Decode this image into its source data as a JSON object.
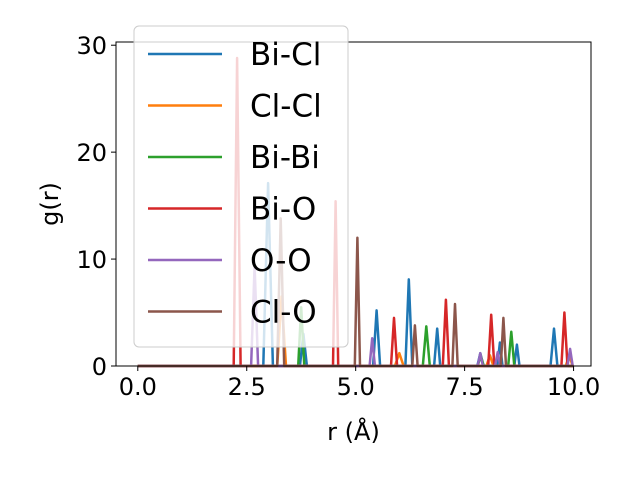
{
  "chart_data": {
    "type": "line",
    "xlabel": "r (Å)",
    "ylabel": "g(r)",
    "xlim": [
      -0.5,
      10.4
    ],
    "ylim": [
      0,
      30.3
    ],
    "xticks": [
      0.0,
      2.5,
      5.0,
      7.5,
      10.0
    ],
    "xtick_labels": [
      "0.0",
      "2.5",
      "5.0",
      "7.5",
      "10.0"
    ],
    "yticks": [
      0,
      10,
      20,
      30
    ],
    "ytick_labels": [
      "0",
      "10",
      "20",
      "30"
    ],
    "grid": false,
    "legend_position": "upper-left",
    "series": [
      {
        "name": "Bi-Cl",
        "color": "#1f77b4",
        "x": [
          0.0,
          2.88,
          2.99,
          3.1,
          3.72,
          3.8,
          3.88,
          5.4,
          5.48,
          5.56,
          6.14,
          6.22,
          6.3,
          6.8,
          6.87,
          6.94,
          7.79,
          7.86,
          7.93,
          8.25,
          8.31,
          8.37,
          8.64,
          8.7,
          8.76,
          9.47,
          9.55,
          9.63,
          10.0
        ],
        "y": [
          0,
          0,
          17.1,
          0,
          0,
          3.0,
          0,
          0,
          5.2,
          0,
          0,
          8.1,
          0,
          0,
          3.5,
          0,
          0,
          1.2,
          0,
          0,
          2.2,
          0,
          0,
          2.0,
          0,
          0,
          3.5,
          0,
          0
        ]
      },
      {
        "name": "Cl-Cl",
        "color": "#ff7f0e",
        "x": [
          0.0,
          3.2,
          3.3,
          3.4,
          5.9,
          6.0,
          6.1,
          8.0,
          8.08,
          8.16,
          9.82,
          9.9,
          9.98,
          10.0
        ],
        "y": [
          0,
          0,
          6.5,
          0,
          0,
          1.2,
          0,
          0,
          1.0,
          0,
          0,
          1.0,
          0,
          0
        ]
      },
      {
        "name": "Bi-Bi",
        "color": "#2ca02c",
        "x": [
          0.0,
          3.68,
          3.75,
          3.82,
          6.54,
          6.62,
          6.7,
          7.8,
          7.87,
          7.94,
          8.5,
          8.57,
          8.64,
          10.0
        ],
        "y": [
          0,
          0,
          5.5,
          0,
          0,
          3.7,
          0,
          0,
          1.0,
          0,
          0,
          3.2,
          0,
          0
        ]
      },
      {
        "name": "Bi-O",
        "color": "#d62728",
        "x": [
          0.0,
          2.2,
          2.28,
          2.36,
          4.48,
          4.54,
          4.6,
          5.81,
          5.88,
          5.95,
          7.0,
          7.07,
          7.14,
          8.04,
          8.11,
          8.18,
          9.72,
          9.79,
          9.86,
          10.0
        ],
        "y": [
          0,
          0,
          28.8,
          0,
          0,
          15.4,
          0,
          0,
          4.5,
          0,
          0,
          6.2,
          0,
          0,
          4.8,
          0,
          0,
          5.0,
          0,
          0
        ]
      },
      {
        "name": "O-O",
        "color": "#9467bd",
        "x": [
          0.0,
          2.6,
          2.68,
          2.76,
          5.32,
          5.38,
          5.44,
          7.8,
          7.86,
          7.92,
          8.2,
          8.26,
          8.32,
          9.86,
          9.92,
          9.98,
          10.0
        ],
        "y": [
          0,
          0,
          9.4,
          0,
          0,
          2.6,
          0,
          0,
          1.2,
          0,
          0,
          1.3,
          0,
          0,
          1.6,
          0,
          0
        ]
      },
      {
        "name": "Cl-O",
        "color": "#8c564b",
        "x": [
          0.0,
          3.2,
          3.28,
          3.36,
          4.98,
          5.04,
          5.1,
          6.3,
          6.36,
          6.42,
          7.22,
          7.28,
          7.34,
          8.33,
          8.39,
          8.45,
          10.0
        ],
        "y": [
          0,
          0,
          13.8,
          0,
          0,
          12.0,
          0,
          0,
          3.8,
          0,
          0,
          5.8,
          0,
          0,
          4.5,
          0,
          0
        ]
      }
    ]
  }
}
